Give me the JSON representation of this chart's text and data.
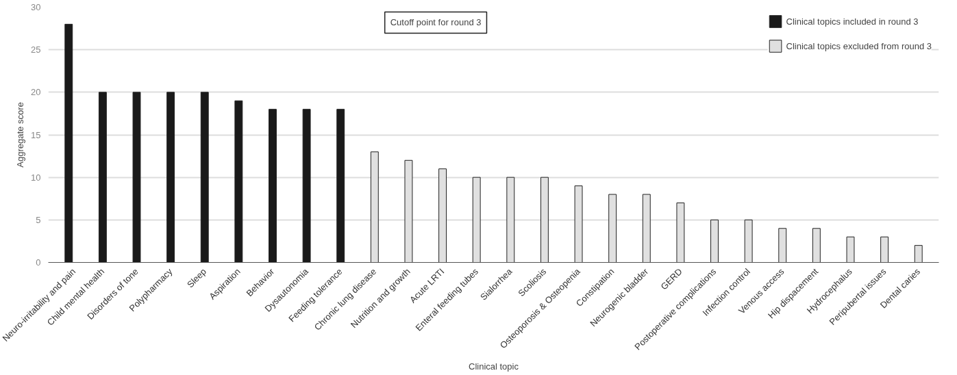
{
  "chart_data": {
    "type": "bar",
    "xlabel": "Clinical topic",
    "ylabel": "Aggregate score",
    "categories": [
      "Neuro-irritability and pain",
      "Child mental health",
      "Disorders of tone",
      "Polypharmacy",
      "Sleep",
      "Aspiration",
      "Behavior",
      "Dysautonomia",
      "Feeding tolerance",
      "Chronic lung disease",
      "Nutrition and growth",
      "Acute LRTI",
      "Enteral feeding tubes",
      "Sialorrhea",
      "Scoliosis",
      "Osteoporosis & Osteopenia",
      "Constipation",
      "Neurogenic bladder",
      "GERD",
      "Postoperative complications",
      "Infection control",
      "Venous access",
      "Hip dispacement",
      "Hydrocephalus",
      "Peripubertal issues",
      "Dental caries"
    ],
    "series": [
      {
        "name": "Clinical topics included in round 3",
        "color": "#1a1a1a",
        "values": [
          28,
          20,
          20,
          20,
          20,
          19,
          18,
          18,
          18,
          null,
          null,
          null,
          null,
          null,
          null,
          null,
          null,
          null,
          null,
          null,
          null,
          null,
          null,
          null,
          null,
          null
        ]
      },
      {
        "name": "Clinical topics excluded from round 3",
        "color": "#e0e0e0",
        "values": [
          null,
          null,
          null,
          null,
          null,
          null,
          null,
          null,
          null,
          13,
          12,
          11,
          10,
          10,
          10,
          9,
          8,
          8,
          7,
          5,
          5,
          4,
          4,
          3,
          3,
          2
        ]
      }
    ],
    "annotations": [
      "Cutoff point for round 3"
    ],
    "ylim": [
      0,
      30
    ],
    "yticks": [
      0,
      5,
      10,
      15,
      20,
      25,
      30
    ],
    "grid": "y",
    "legend": "top right"
  }
}
